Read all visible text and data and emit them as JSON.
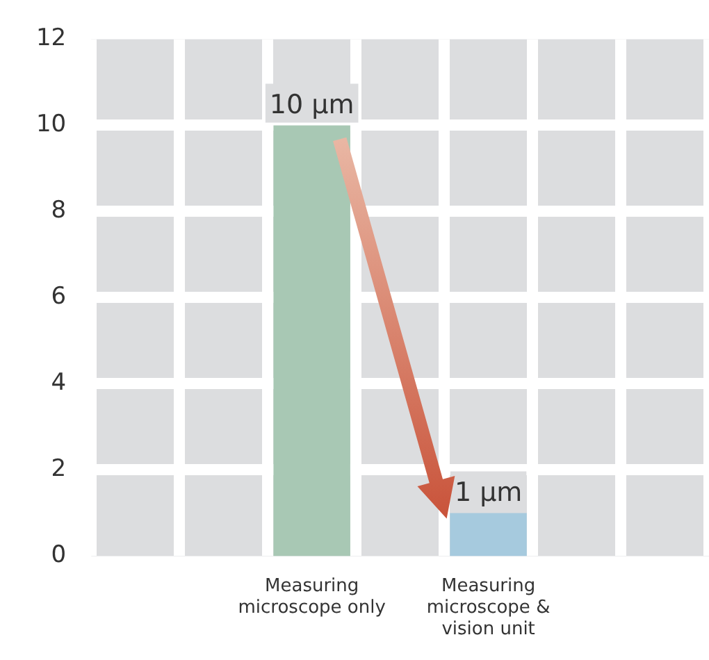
{
  "chart_data": {
    "type": "bar",
    "categories": [
      null,
      null,
      "Measuring microscope only",
      null,
      "Measuring microscope & vision unit",
      null,
      null
    ],
    "values": [
      null,
      null,
      10,
      null,
      1,
      null,
      null
    ],
    "colors": [
      null,
      null,
      "#a8c8b4",
      null,
      "#a6cade",
      null,
      null
    ],
    "value_labels": [
      null,
      null,
      "10 µm",
      null,
      "1 µm",
      null,
      null
    ],
    "ylim": [
      0,
      12
    ],
    "yticks": [
      0,
      2,
      4,
      6,
      8,
      10,
      12
    ],
    "grid": true,
    "legend": false
  }
}
